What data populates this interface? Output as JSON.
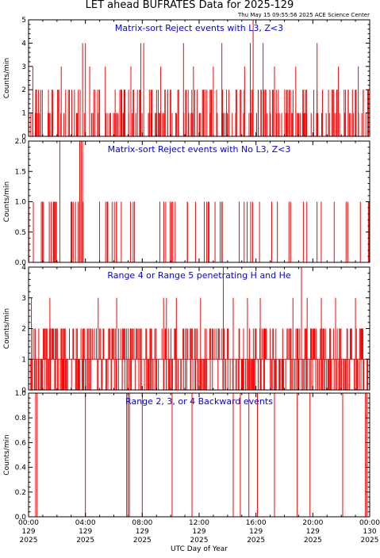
{
  "header": {
    "title": "LET ahead BUFRATES Data for 2025-129",
    "timestamp": "Thu May 15 09:55:56 2025 ACE Science Center"
  },
  "colors": {
    "trace": "#ff0000",
    "panel_title": "#0000ff",
    "axes": "#000000",
    "background": "#ffffff"
  },
  "xaxis": {
    "label": "UTC Day of Year",
    "ticks": [
      {
        "time": "00:00",
        "doy": "129",
        "year": "2025",
        "hour": 0
      },
      {
        "time": "04:00",
        "doy": "129",
        "year": "2025",
        "hour": 4
      },
      {
        "time": "08:00",
        "doy": "129",
        "year": "2025",
        "hour": 8
      },
      {
        "time": "12:00",
        "doy": "129",
        "year": "2025",
        "hour": 12
      },
      {
        "time": "16:00",
        "doy": "129",
        "year": "2025",
        "hour": 16
      },
      {
        "time": "20:00",
        "doy": "129",
        "year": "2025",
        "hour": 20
      },
      {
        "time": "00:00",
        "doy": "130",
        "year": "2025",
        "hour": 24
      }
    ]
  },
  "chart_data": [
    {
      "type": "line",
      "title": "Matrix-sort Reject events with L3, Z<3",
      "ylabel": "Counts/min",
      "xlim": [
        0,
        24
      ],
      "ylim": [
        0,
        5
      ],
      "yticks": [
        0,
        1,
        2,
        3,
        4,
        5
      ],
      "ytick_labels": [
        "0",
        "1",
        "2",
        "3",
        "4",
        "5"
      ],
      "baseline": 0,
      "series": [
        {
          "spikes": [
            [
              0.3,
              3
            ],
            [
              0.5,
              2
            ],
            [
              1.4,
              2
            ],
            [
              1.7,
              2
            ],
            [
              2.3,
              3
            ],
            [
              2.8,
              2
            ],
            [
              3.5,
              2
            ],
            [
              3.8,
              4
            ],
            [
              4.0,
              4
            ],
            [
              4.3,
              3
            ],
            [
              5.0,
              2
            ],
            [
              5.4,
              3
            ],
            [
              6.5,
              2
            ],
            [
              7.2,
              3
            ],
            [
              7.9,
              4
            ],
            [
              8.1,
              4
            ],
            [
              8.5,
              2
            ],
            [
              9.3,
              3
            ],
            [
              9.8,
              2
            ],
            [
              10.5,
              2
            ],
            [
              10.9,
              4
            ],
            [
              11.6,
              3
            ],
            [
              12.3,
              2
            ],
            [
              13.0,
              3
            ],
            [
              13.6,
              4
            ],
            [
              14.1,
              2
            ],
            [
              15.2,
              3
            ],
            [
              15.6,
              4
            ],
            [
              15.8,
              5
            ],
            [
              16.5,
              4
            ],
            [
              17.3,
              3
            ],
            [
              18.2,
              2
            ],
            [
              18.8,
              3
            ],
            [
              19.5,
              2
            ],
            [
              20.3,
              4
            ],
            [
              21.1,
              2
            ],
            [
              21.8,
              3
            ],
            [
              22.5,
              2
            ],
            [
              23.2,
              3
            ]
          ],
          "min_level": 1,
          "max_level": 2,
          "density": 220,
          "seed": 11
        }
      ]
    },
    {
      "type": "line",
      "title": "Matrix-sort Reject events with No L3, Z<3",
      "ylabel": "Counts/min",
      "xlim": [
        0,
        24
      ],
      "ylim": [
        0,
        2
      ],
      "yticks": [
        0,
        0.5,
        1,
        1.5,
        2
      ],
      "ytick_labels": [
        "0.0",
        "0.5",
        "1.0",
        "1.5",
        "2.0"
      ],
      "baseline": 0,
      "series": [
        {
          "spikes": [
            [
              2.2,
              2
            ],
            [
              3.6,
              2
            ],
            [
              3.7,
              2
            ],
            [
              3.8,
              2
            ]
          ],
          "min_level": 1,
          "max_level": 1,
          "density": 70,
          "seed": 23
        }
      ]
    },
    {
      "type": "line",
      "title": "Range 4 or Range 5 penetrating H and He",
      "ylabel": "Counts/min",
      "xlim": [
        0,
        24
      ],
      "ylim": [
        0,
        4
      ],
      "yticks": [
        0,
        1,
        2,
        3,
        4
      ],
      "ytick_labels": [
        "0",
        "1",
        "2",
        "3",
        "4"
      ],
      "baseline": 1,
      "series": [
        {
          "spikes": [
            [
              0.2,
              3
            ],
            [
              1.5,
              3
            ],
            [
              2.5,
              2
            ],
            [
              4.9,
              3
            ],
            [
              6.2,
              3
            ],
            [
              8.3,
              2
            ],
            [
              9.5,
              3
            ],
            [
              9.7,
              3
            ],
            [
              10.4,
              3
            ],
            [
              11.4,
              2
            ],
            [
              12.1,
              3
            ],
            [
              13.7,
              4
            ],
            [
              14.4,
              3
            ],
            [
              15.4,
              3
            ],
            [
              16.3,
              3
            ],
            [
              17.4,
              2
            ],
            [
              18.6,
              3
            ],
            [
              19.2,
              4
            ],
            [
              19.6,
              3
            ],
            [
              20.6,
              3
            ],
            [
              21.6,
              3
            ],
            [
              22.4,
              2
            ],
            [
              23.0,
              3
            ]
          ],
          "min_level": 2,
          "max_level": 2,
          "zero_dips": 260,
          "density": 200,
          "seed": 37
        }
      ]
    },
    {
      "type": "line",
      "title": "Range 2, 3, or 4 Backward events",
      "ylabel": "Counts/min",
      "xlim": [
        0,
        24
      ],
      "ylim": [
        0,
        1
      ],
      "yticks": [
        0,
        0.2,
        0.4,
        0.6,
        0.8,
        1.0
      ],
      "ytick_labels": [
        "0.0",
        "0.2",
        "0.4",
        "0.6",
        "0.8",
        "1.0"
      ],
      "baseline": 0,
      "series": [
        {
          "spikes": [
            [
              0.5,
              1
            ],
            [
              0.6,
              1
            ],
            [
              4.0,
              1
            ],
            [
              6.9,
              1
            ],
            [
              7.0,
              1
            ],
            [
              7.1,
              1
            ],
            [
              8.0,
              1
            ],
            [
              10.1,
              1
            ],
            [
              11.5,
              1
            ],
            [
              14.4,
              1
            ],
            [
              14.9,
              1
            ],
            [
              15.5,
              1
            ],
            [
              16.1,
              1
            ],
            [
              17.3,
              1
            ],
            [
              18.9,
              1
            ],
            [
              19.8,
              1
            ],
            [
              22.1,
              1
            ],
            [
              23.7,
              1
            ],
            [
              23.8,
              1
            ]
          ],
          "min_level": 1,
          "max_level": 1,
          "density": 0,
          "seed": 51
        }
      ]
    }
  ]
}
